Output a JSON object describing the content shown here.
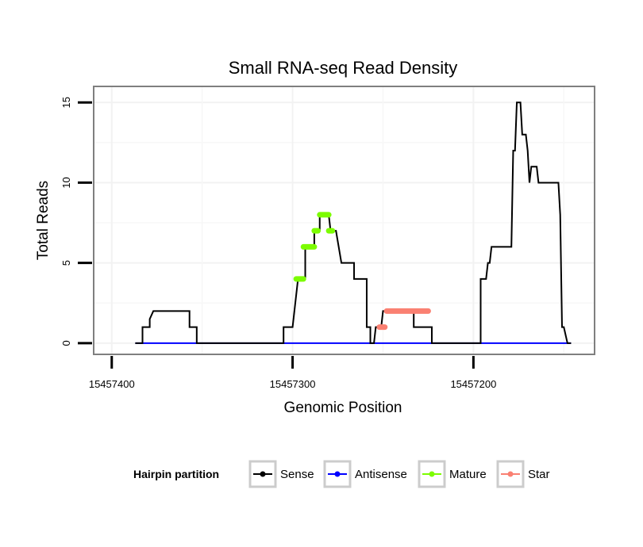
{
  "chart_data": {
    "type": "line",
    "title": "Small RNA-seq Read Density",
    "xlabel": "Genomic Position",
    "ylabel": "Total Reads",
    "xlim": [
      15457410,
      15457133
    ],
    "ylim": [
      -0.7,
      16
    ],
    "x_reversed": true,
    "x_ticks": [
      15457400,
      15457300,
      15457200
    ],
    "x_tick_labels": [
      "15457400",
      "15457300",
      "15457200"
    ],
    "y_ticks": [
      0,
      5,
      10,
      15
    ],
    "y_tick_labels": [
      "0",
      "5",
      "10",
      "15"
    ],
    "grid": true,
    "legend": {
      "title": "Hairpin partition",
      "position": "bottom",
      "items": [
        {
          "label": "Sense",
          "color": "#000000"
        },
        {
          "label": "Antisense",
          "color": "#0000ff"
        },
        {
          "label": "Mature",
          "color": "#7cfc00"
        },
        {
          "label": "Star",
          "color": "#fa8072"
        }
      ]
    },
    "series": [
      {
        "name": "Sense",
        "color": "#000000",
        "style": "step-line",
        "points": [
          [
            15457387,
            0
          ],
          [
            15457383,
            0
          ],
          [
            15457383,
            1
          ],
          [
            15457379,
            1
          ],
          [
            15457379,
            1.5
          ],
          [
            15457377,
            2
          ],
          [
            15457357,
            2
          ],
          [
            15457357,
            1
          ],
          [
            15457353,
            1
          ],
          [
            15457353,
            0
          ],
          [
            15457305,
            0
          ],
          [
            15457305,
            1
          ],
          [
            15457300,
            1
          ],
          [
            15457299,
            2
          ],
          [
            15457298,
            3
          ],
          [
            15457297,
            4
          ],
          [
            15457293,
            4
          ],
          [
            15457293,
            6
          ],
          [
            15457288,
            6
          ],
          [
            15457288,
            7
          ],
          [
            15457285,
            7
          ],
          [
            15457285,
            8
          ],
          [
            15457280,
            8
          ],
          [
            15457279,
            7
          ],
          [
            15457276,
            7
          ],
          [
            15457273,
            5
          ],
          [
            15457266,
            5
          ],
          [
            15457266,
            4
          ],
          [
            15457259,
            4
          ],
          [
            15457259,
            1
          ],
          [
            15457257,
            1
          ],
          [
            15457257,
            0
          ],
          [
            15457255,
            0
          ],
          [
            15457254,
            1
          ],
          [
            15457251,
            1
          ],
          [
            15457250,
            2
          ],
          [
            15457233,
            2
          ],
          [
            15457233,
            1
          ],
          [
            15457223,
            1
          ],
          [
            15457223,
            0
          ],
          [
            15457196,
            0
          ],
          [
            15457196,
            4
          ],
          [
            15457193,
            4
          ],
          [
            15457192,
            5
          ],
          [
            15457191,
            5
          ],
          [
            15457190,
            6
          ],
          [
            15457179,
            6
          ],
          [
            15457178,
            12
          ],
          [
            15457177,
            12
          ],
          [
            15457176,
            15
          ],
          [
            15457174,
            15
          ],
          [
            15457173,
            13
          ],
          [
            15457171,
            13
          ],
          [
            15457170,
            12
          ],
          [
            15457169,
            10
          ],
          [
            15457168,
            11
          ],
          [
            15457165,
            11
          ],
          [
            15457164,
            10
          ],
          [
            15457153,
            10
          ],
          [
            15457152,
            8
          ],
          [
            15457151,
            1
          ],
          [
            15457150,
            1
          ],
          [
            15457148,
            0
          ],
          [
            15457146,
            0
          ]
        ]
      },
      {
        "name": "Antisense",
        "color": "#0000ff",
        "style": "line",
        "points": [
          [
            15457387,
            0
          ],
          [
            15457146,
            0
          ]
        ]
      },
      {
        "name": "Mature",
        "color": "#7cfc00",
        "style": "thick-segments",
        "segments": [
          {
            "from": 15457298,
            "to": 15457294,
            "value": 4
          },
          {
            "from": 15457294,
            "to": 15457288,
            "value": 6
          },
          {
            "from": 15457288,
            "to": 15457286,
            "value": 7
          },
          {
            "from": 15457285,
            "to": 15457280,
            "value": 8
          },
          {
            "from": 15457280,
            "to": 15457278,
            "value": 7
          }
        ]
      },
      {
        "name": "Star",
        "color": "#fa8072",
        "style": "thick-segments",
        "segments": [
          {
            "from": 15457252,
            "to": 15457249,
            "value": 1
          },
          {
            "from": 15457248,
            "to": 15457225,
            "value": 2
          }
        ]
      }
    ]
  }
}
